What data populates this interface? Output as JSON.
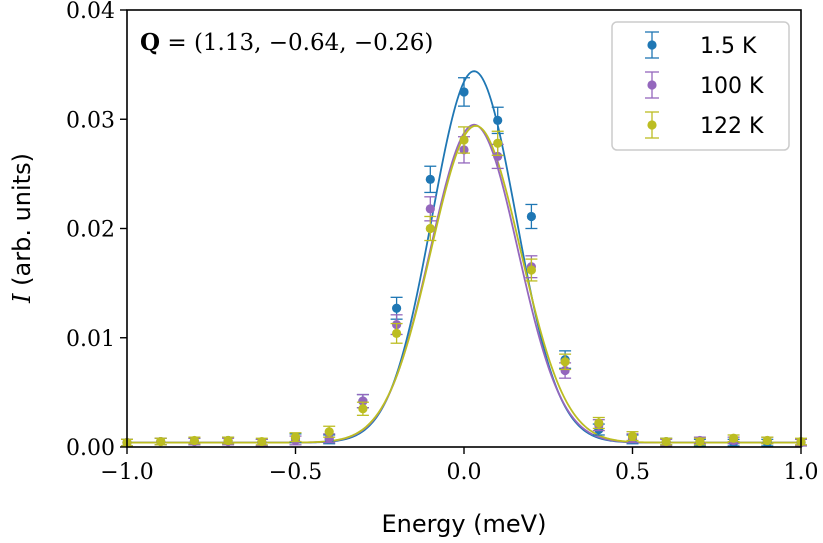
{
  "chart_data": {
    "type": "scatter",
    "xlabel": "Energy (meV)",
    "ylabel_symbol": "I",
    "ylabel_rest": " (arb. units)",
    "xlim": [
      -1.0,
      1.0
    ],
    "ylim": [
      0.0,
      0.04
    ],
    "xticks": [
      -1.0,
      -0.5,
      0.0,
      0.5,
      1.0
    ],
    "xtick_labels": [
      "−1.0",
      "−0.5",
      "0.0",
      "0.5",
      "1.0"
    ],
    "yticks": [
      0.0,
      0.01,
      0.02,
      0.03,
      0.04
    ],
    "ytick_labels": [
      "0.00",
      "0.01",
      "0.02",
      "0.03",
      "0.04"
    ],
    "annotation_bold": "Q",
    "annotation_rest": " = (1.13, −0.64, −0.26)",
    "legend_position": "top-right",
    "x": [
      -1.0,
      -0.9,
      -0.8,
      -0.7,
      -0.6,
      -0.5,
      -0.4,
      -0.3,
      -0.2,
      -0.1,
      0.0,
      0.1,
      0.2,
      0.3,
      0.4,
      0.5,
      0.6,
      0.7,
      0.8,
      0.9,
      1.0
    ],
    "series": [
      {
        "name": "1.5 K",
        "color": "#1f77b4",
        "values": [
          0.0004,
          0.0005,
          0.0005,
          0.0006,
          0.0004,
          0.0008,
          0.0007,
          0.0042,
          0.0127,
          0.0245,
          0.0325,
          0.0299,
          0.0211,
          0.008,
          0.0016,
          0.0007,
          0.0005,
          0.0004,
          0.0004,
          0.0004,
          0.0004
        ],
        "errors": [
          0.0003,
          0.0003,
          0.0003,
          0.0003,
          0.0003,
          0.0004,
          0.0004,
          0.0006,
          0.001,
          0.0012,
          0.0013,
          0.0012,
          0.0011,
          0.0008,
          0.0005,
          0.0004,
          0.0003,
          0.0003,
          0.0003,
          0.0003,
          0.0003
        ],
        "fit": {
          "amplitude": 0.034,
          "center": 0.03,
          "sigma": 0.125,
          "baseline": 0.0004
        }
      },
      {
        "name": "100 K",
        "color": "#9467bd",
        "values": [
          0.0004,
          0.0005,
          0.0005,
          0.0005,
          0.0004,
          0.0006,
          0.0008,
          0.0042,
          0.0112,
          0.0218,
          0.0272,
          0.0266,
          0.0165,
          0.007,
          0.002,
          0.0008,
          0.0004,
          0.0006,
          0.0006,
          0.0006,
          0.0004
        ],
        "errors": [
          0.0003,
          0.0003,
          0.0003,
          0.0003,
          0.0003,
          0.0004,
          0.0004,
          0.0006,
          0.0009,
          0.0011,
          0.0012,
          0.0011,
          0.001,
          0.0007,
          0.0005,
          0.0004,
          0.0003,
          0.0003,
          0.0003,
          0.0003,
          0.0003
        ],
        "fit": {
          "amplitude": 0.0291,
          "center": 0.03,
          "sigma": 0.13,
          "baseline": 0.0004
        }
      },
      {
        "name": "122 K",
        "color": "#bcbd22",
        "values": [
          0.0004,
          0.0005,
          0.0006,
          0.0006,
          0.0005,
          0.0009,
          0.0014,
          0.0035,
          0.0104,
          0.02,
          0.0281,
          0.0278,
          0.0162,
          0.0078,
          0.0022,
          0.001,
          0.0005,
          0.0005,
          0.0008,
          0.0006,
          0.0005
        ],
        "errors": [
          0.0003,
          0.0003,
          0.0003,
          0.0003,
          0.0003,
          0.0004,
          0.0005,
          0.0006,
          0.0009,
          0.0011,
          0.0012,
          0.0011,
          0.001,
          0.0007,
          0.0005,
          0.0004,
          0.0003,
          0.0003,
          0.0003,
          0.0003,
          0.0003
        ],
        "fit": {
          "amplitude": 0.029,
          "center": 0.035,
          "sigma": 0.133,
          "baseline": 0.0004
        }
      }
    ]
  }
}
